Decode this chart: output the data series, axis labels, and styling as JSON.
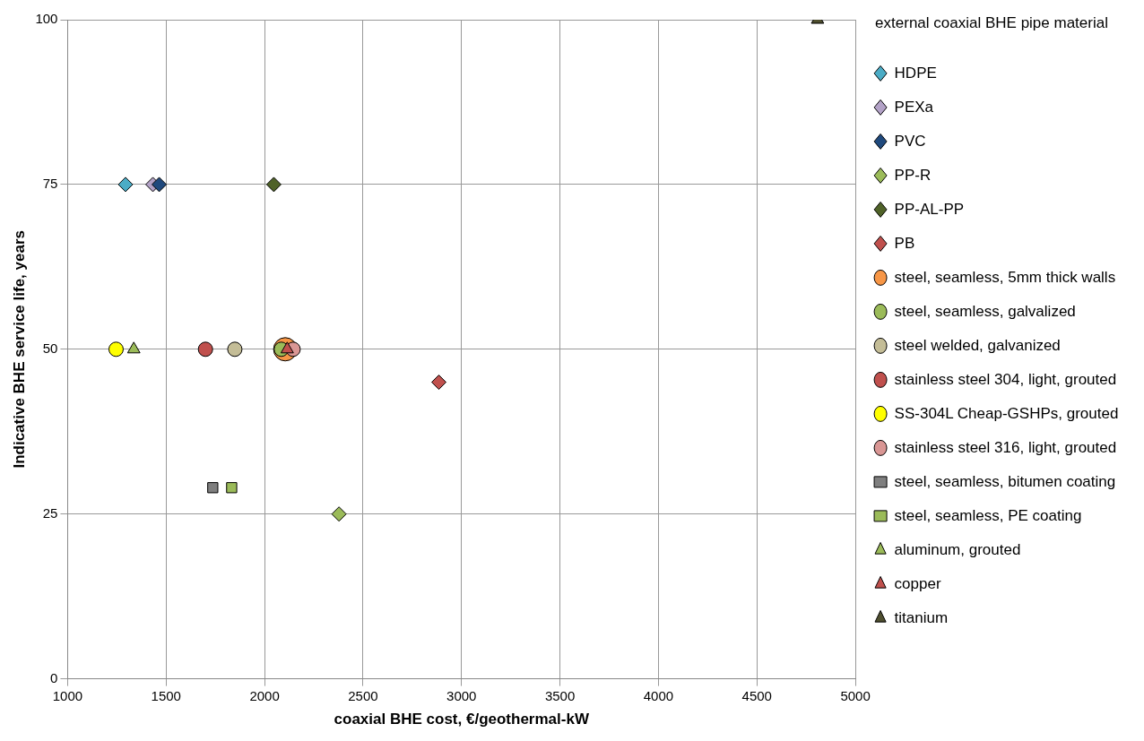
{
  "chart_data": {
    "type": "scatter",
    "xlabel": "coaxial BHE cost, €/geothermal-kW",
    "ylabel": "Indicative BHE service life, years",
    "legend_title": "external coaxial BHE pipe material",
    "legend": "right",
    "grid": true,
    "xlim": [
      1000,
      5000
    ],
    "xticks": [
      1000,
      1500,
      2000,
      2500,
      3000,
      3500,
      4000,
      4500,
      5000
    ],
    "ylim": [
      0,
      100
    ],
    "yticks": [
      0,
      25,
      50,
      75,
      100
    ],
    "series": [
      {
        "name": "HDPE",
        "color": "#4bacc6",
        "marker": "diamond",
        "x": [
          1294
        ],
        "values": [
          75
        ]
      },
      {
        "name": "PEXa",
        "color": "#b3a2c7",
        "marker": "diamond",
        "x": [
          1433
        ],
        "values": [
          75
        ]
      },
      {
        "name": "PVC",
        "color": "#1f497d",
        "marker": "diamond",
        "x": [
          1465
        ],
        "values": [
          75
        ]
      },
      {
        "name": "PP-R",
        "color": "#9bbb59",
        "marker": "diamond",
        "x": [
          2378
        ],
        "values": [
          25
        ]
      },
      {
        "name": "PP-AL-PP",
        "color": "#4f6228",
        "marker": "diamond",
        "x": [
          2047
        ],
        "values": [
          75
        ]
      },
      {
        "name": "PB",
        "color": "#c0504d",
        "marker": "diamond",
        "x": [
          2885
        ],
        "values": [
          45
        ]
      },
      {
        "name": "steel, seamless, 5mm thick walls",
        "color": "#f79646",
        "marker": "circle",
        "x": [
          2105
        ],
        "values": [
          50
        ]
      },
      {
        "name": "steel, seamless, galvalized",
        "color": "#9bbb59",
        "marker": "circle",
        "x": [
          2085
        ],
        "values": [
          50
        ]
      },
      {
        "name": "steel welded, galvanized",
        "color": "#c4bd97",
        "marker": "circle",
        "x": [
          1849
        ],
        "values": [
          50
        ]
      },
      {
        "name": "stainless steel 304, light, grouted",
        "color": "#c0504d",
        "marker": "circle",
        "x": [
          1700
        ],
        "values": [
          50
        ]
      },
      {
        "name": "SS-304L Cheap-GSHPs, grouted",
        "color": "#ffff00",
        "marker": "circle",
        "x": [
          1246
        ],
        "values": [
          50
        ]
      },
      {
        "name": "stainless steel 316, light, grouted",
        "color": "#d99694",
        "marker": "circle",
        "x": [
          2145
        ],
        "values": [
          50
        ]
      },
      {
        "name": "steel, seamless, bitumen coating",
        "color": "#7f7f7f",
        "marker": "square",
        "x": [
          1737
        ],
        "values": [
          29
        ]
      },
      {
        "name": "steel, seamless, PE coating",
        "color": "#9bbb59",
        "marker": "square",
        "x": [
          1833
        ],
        "values": [
          29
        ]
      },
      {
        "name": "aluminum, grouted",
        "color": "#9bbb59",
        "marker": "triangle",
        "x": [
          1336
        ],
        "values": [
          50
        ]
      },
      {
        "name": "copper",
        "color": "#c0504d",
        "marker": "triangle",
        "x": [
          2115
        ],
        "values": [
          50
        ]
      },
      {
        "name": "titanium",
        "color": "#4f4f2f",
        "marker": "triangle",
        "x": [
          4808
        ],
        "values": [
          100
        ]
      }
    ]
  }
}
